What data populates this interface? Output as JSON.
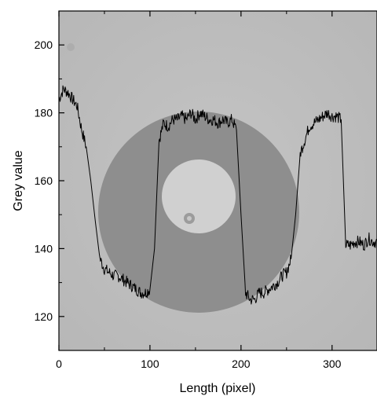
{
  "chart_data": {
    "type": "line",
    "title": "",
    "xlabel": "Length (pixel)",
    "ylabel": "Grey value",
    "xlim": [
      0,
      350
    ],
    "ylim": [
      110,
      210
    ],
    "x_ticks": [
      0,
      100,
      200,
      300
    ],
    "x_tick_labels": [
      "0",
      "100",
      "200",
      "300"
    ],
    "y_ticks": [
      120,
      140,
      160,
      180,
      200
    ],
    "y_tick_labels": [
      "120",
      "140",
      "160",
      "180",
      "200"
    ],
    "grid": false,
    "legend": "none",
    "background": "greyscale micrograph: light grey field with a dark grey ring and a light grey inner disc",
    "series": [
      {
        "color": "#000000",
        "x": [
          0,
          5,
          10,
          15,
          20,
          25,
          30,
          35,
          40,
          45,
          50,
          55,
          60,
          65,
          70,
          75,
          80,
          85,
          90,
          95,
          100,
          105,
          110,
          115,
          120,
          125,
          130,
          135,
          140,
          145,
          150,
          155,
          160,
          165,
          170,
          175,
          180,
          185,
          190,
          195,
          200,
          205,
          210,
          215,
          220,
          225,
          230,
          235,
          240,
          245,
          250,
          255,
          260,
          265,
          270,
          275,
          280,
          285,
          290,
          295,
          300,
          305,
          310,
          315,
          320,
          325,
          330,
          335,
          340,
          345,
          350
        ],
        "y": [
          184,
          187,
          186,
          184,
          182,
          175,
          170,
          160,
          148,
          137,
          134,
          133,
          132,
          132,
          131,
          130,
          129,
          128,
          127,
          127,
          128,
          140,
          172,
          177,
          176,
          178,
          178,
          179,
          178,
          180,
          178,
          180,
          179,
          178,
          178,
          177,
          178,
          177,
          178,
          175,
          150,
          127,
          125,
          125,
          127,
          127,
          128,
          129,
          130,
          132,
          133,
          137,
          150,
          168,
          172,
          176,
          177,
          178,
          179,
          180,
          179,
          179,
          178,
          141,
          141,
          142,
          142,
          141,
          143,
          142,
          142
        ]
      }
    ]
  }
}
